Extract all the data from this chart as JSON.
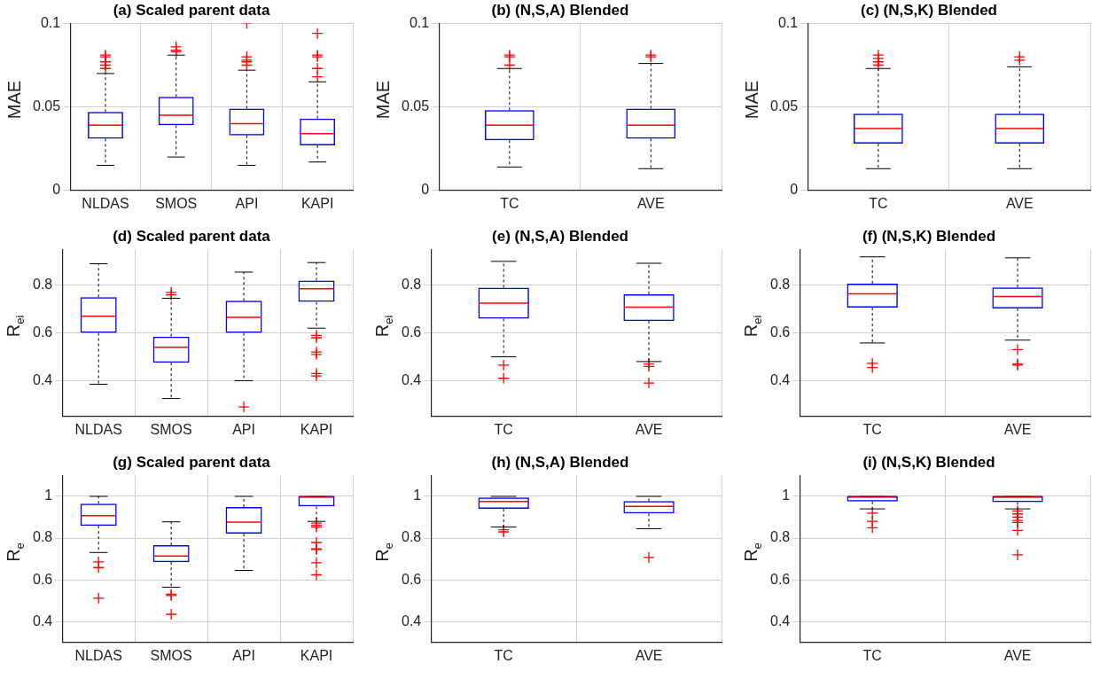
{
  "chart_data": [
    {
      "type": "box",
      "title": "(a) Scaled parent data",
      "ylabel": "MAE",
      "categories": [
        "NLDAS",
        "SMOS",
        "API",
        "KAPI"
      ],
      "ylim": [
        0,
        0.1
      ],
      "yticks": [
        0,
        0.05,
        0.1
      ],
      "grid": true,
      "marker": "cross",
      "boxes": [
        {
          "low": 0.015,
          "q1": 0.031,
          "median": 0.039,
          "q3": 0.047,
          "high": 0.07,
          "outliers": [
            0.073,
            0.075,
            0.077,
            0.08,
            0.081
          ]
        },
        {
          "low": 0.02,
          "q1": 0.039,
          "median": 0.045,
          "q3": 0.056,
          "high": 0.081,
          "outliers": [
            0.083,
            0.084,
            0.086
          ]
        },
        {
          "low": 0.015,
          "q1": 0.033,
          "median": 0.04,
          "q3": 0.049,
          "high": 0.072,
          "outliers": [
            0.075,
            0.077,
            0.078,
            0.08,
            0.1
          ]
        },
        {
          "low": 0.017,
          "q1": 0.027,
          "median": 0.034,
          "q3": 0.043,
          "high": 0.065,
          "outliers": [
            0.068,
            0.073,
            0.08,
            0.081,
            0.094
          ]
        }
      ]
    },
    {
      "type": "box",
      "title": "(b) (N,S,A) Blended",
      "ylabel": "MAE",
      "categories": [
        "TC",
        "AVE"
      ],
      "ylim": [
        0,
        0.1
      ],
      "yticks": [
        0,
        0.05,
        0.1
      ],
      "grid": true,
      "marker": "cross",
      "boxes": [
        {
          "low": 0.014,
          "q1": 0.03,
          "median": 0.039,
          "q3": 0.048,
          "high": 0.073,
          "outliers": [
            0.075,
            0.08,
            0.081
          ]
        },
        {
          "low": 0.013,
          "q1": 0.031,
          "median": 0.039,
          "q3": 0.049,
          "high": 0.076,
          "outliers": [
            0.08,
            0.081
          ]
        }
      ]
    },
    {
      "type": "box",
      "title": "(c) (N,S,K) Blended",
      "ylabel": "MAE",
      "categories": [
        "TC",
        "AVE"
      ],
      "ylim": [
        0,
        0.1
      ],
      "yticks": [
        0,
        0.05,
        0.1
      ],
      "grid": true,
      "marker": "cross",
      "boxes": [
        {
          "low": 0.013,
          "q1": 0.028,
          "median": 0.037,
          "q3": 0.046,
          "high": 0.073,
          "outliers": [
            0.075,
            0.077,
            0.079,
            0.081
          ]
        },
        {
          "low": 0.013,
          "q1": 0.028,
          "median": 0.037,
          "q3": 0.046,
          "high": 0.074,
          "outliers": [
            0.078,
            0.08
          ]
        }
      ]
    },
    {
      "type": "box",
      "title": "(d) Scaled parent data",
      "ylabel": "R$_{ei}$",
      "categories": [
        "NLDAS",
        "SMOS",
        "API",
        "KAPI"
      ],
      "ylim": [
        0.25,
        0.95
      ],
      "yticks": [
        0.4,
        0.6,
        0.8
      ],
      "grid": true,
      "marker": "cross",
      "boxes": [
        {
          "low": 0.385,
          "q1": 0.6,
          "median": 0.67,
          "q3": 0.75,
          "high": 0.89
        },
        {
          "low": 0.325,
          "q1": 0.475,
          "median": 0.54,
          "q3": 0.585,
          "high": 0.745,
          "outliers": [
            0.76,
            0.77
          ]
        },
        {
          "low": 0.4,
          "q1": 0.6,
          "median": 0.665,
          "q3": 0.735,
          "high": 0.855,
          "outliers": [
            0.29
          ]
        },
        {
          "low": 0.62,
          "q1": 0.73,
          "median": 0.785,
          "q3": 0.82,
          "high": 0.895,
          "outliers": [
            0.59,
            0.58,
            0.52,
            0.51,
            0.43,
            0.42
          ]
        }
      ]
    },
    {
      "type": "box",
      "title": "(e) (N,S,A) Blended",
      "ylabel": "R$_{ei}$",
      "categories": [
        "TC",
        "AVE"
      ],
      "ylim": [
        0.25,
        0.95
      ],
      "yticks": [
        0.4,
        0.6,
        0.8
      ],
      "grid": true,
      "marker": "cross",
      "boxes": [
        {
          "low": 0.5,
          "q1": 0.66,
          "median": 0.725,
          "q3": 0.79,
          "high": 0.9,
          "outliers": [
            0.465,
            0.41
          ]
        },
        {
          "low": 0.48,
          "q1": 0.65,
          "median": 0.708,
          "q3": 0.762,
          "high": 0.892,
          "outliers": [
            0.47,
            0.46,
            0.39
          ]
        }
      ]
    },
    {
      "type": "box",
      "title": "(f) (N,S,K) Blended",
      "ylabel": "R$_{ei}$",
      "categories": [
        "TC",
        "AVE"
      ],
      "ylim": [
        0.25,
        0.95
      ],
      "yticks": [
        0.4,
        0.6,
        0.8
      ],
      "grid": true,
      "marker": "cross",
      "boxes": [
        {
          "low": 0.558,
          "q1": 0.706,
          "median": 0.764,
          "q3": 0.807,
          "high": 0.919,
          "outliers": [
            0.473,
            0.455
          ]
        },
        {
          "low": 0.57,
          "q1": 0.703,
          "median": 0.753,
          "q3": 0.791,
          "high": 0.915,
          "outliers": [
            0.53,
            0.47,
            0.465
          ]
        }
      ]
    },
    {
      "type": "box",
      "title": "(g) Scaled parent data",
      "ylabel": "R$_{e}$",
      "categories": [
        "NLDAS",
        "SMOS",
        "API",
        "KAPI"
      ],
      "ylim": [
        0.3,
        1.1
      ],
      "yticks": [
        0.4,
        0.6,
        0.8,
        1
      ],
      "grid": true,
      "marker": "cross",
      "boxes": [
        {
          "low": 0.731,
          "q1": 0.859,
          "median": 0.907,
          "q3": 0.965,
          "high": 1,
          "outliers": [
            0.686,
            0.659,
            0.512
          ]
        },
        {
          "low": 0.565,
          "q1": 0.685,
          "median": 0.714,
          "q3": 0.766,
          "high": 0.878,
          "outliers": [
            0.531,
            0.525,
            0.435
          ]
        },
        {
          "low": 0.645,
          "q1": 0.821,
          "median": 0.877,
          "q3": 0.949,
          "high": 1
        },
        {
          "low": 0.88,
          "q1": 0.952,
          "median": 1,
          "q3": 1,
          "high": 1,
          "outliers": [
            0.872,
            0.861,
            0.853,
            0.779,
            0.749,
            0.746,
            0.682,
            0.624
          ]
        }
      ]
    },
    {
      "type": "box",
      "title": "(h) (N,S,A) Blended",
      "ylabel": "R$_{e}$",
      "categories": [
        "TC",
        "AVE"
      ],
      "ylim": [
        0.3,
        1.1
      ],
      "yticks": [
        0.4,
        0.6,
        0.8,
        1
      ],
      "grid": true,
      "marker": "cross",
      "boxes": [
        {
          "low": 0.853,
          "q1": 0.94,
          "median": 0.975,
          "q3": 0.995,
          "high": 1,
          "outliers": [
            0.84,
            0.83
          ]
        },
        {
          "low": 0.845,
          "q1": 0.918,
          "median": 0.952,
          "q3": 0.977,
          "high": 1,
          "outliers": [
            0.707
          ]
        }
      ]
    },
    {
      "type": "box",
      "title": "(i) (N,S,K) Blended",
      "ylabel": "R$_{e}$",
      "categories": [
        "TC",
        "AVE"
      ],
      "ylim": [
        0.3,
        1.1
      ],
      "yticks": [
        0.4,
        0.6,
        0.8,
        1
      ],
      "grid": true,
      "marker": "cross",
      "boxes": [
        {
          "low": 0.94,
          "q1": 0.975,
          "median": 1,
          "q3": 1,
          "high": 1,
          "outliers": [
            0.92,
            0.88,
            0.85
          ]
        },
        {
          "low": 0.94,
          "q1": 0.972,
          "median": 1,
          "q3": 1,
          "high": 1,
          "outliers": [
            0.93,
            0.916,
            0.9,
            0.885,
            0.875,
            0.837,
            0.72
          ]
        }
      ]
    }
  ]
}
